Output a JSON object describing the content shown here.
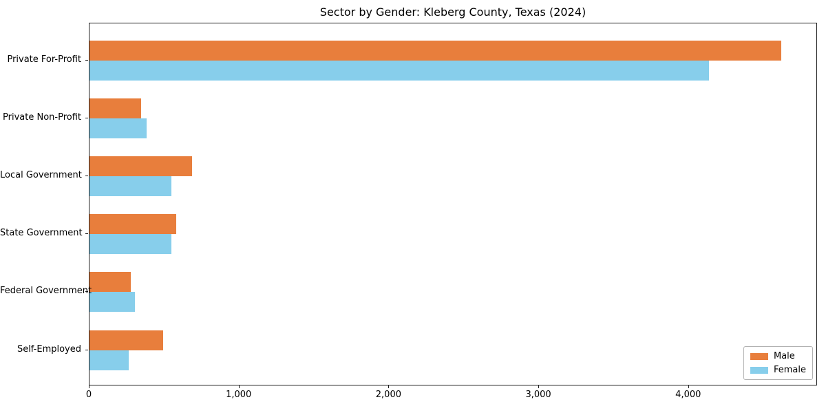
{
  "title": "Sector by Gender: Kleberg County, Texas (2024)",
  "chart_data": {
    "type": "bar",
    "orientation": "horizontal",
    "title": "Sector by Gender: Kleberg County, Texas (2024)",
    "categories": [
      "Private For-Profit",
      "Private Non-Profit",
      "Local Government",
      "State Government",
      "Federal Government",
      "Self-Employed"
    ],
    "series": [
      {
        "name": "Male",
        "color": "#e87e3c",
        "values": [
          4625,
          347,
          688,
          580,
          274,
          494
        ]
      },
      {
        "name": "Female",
        "color": "#87ceeb",
        "values": [
          4140,
          380,
          546,
          549,
          306,
          264
        ]
      }
    ],
    "xlabel": "",
    "ylabel": "",
    "xlim": [
      0,
      4860
    ],
    "x_ticks": [
      0,
      1000,
      2000,
      3000,
      4000
    ],
    "x_tick_labels": [
      "0",
      "1,000",
      "2,000",
      "3,000",
      "4,000"
    ],
    "grid": false,
    "legend": {
      "position": "lower right",
      "entries": [
        "Male",
        "Female"
      ]
    }
  },
  "colors": {
    "male": "#e87e3c",
    "female": "#87ceeb",
    "spine": "#1a1a1a",
    "text": "#000000",
    "legend_border": "#b0b0b0",
    "background": "#ffffff"
  }
}
